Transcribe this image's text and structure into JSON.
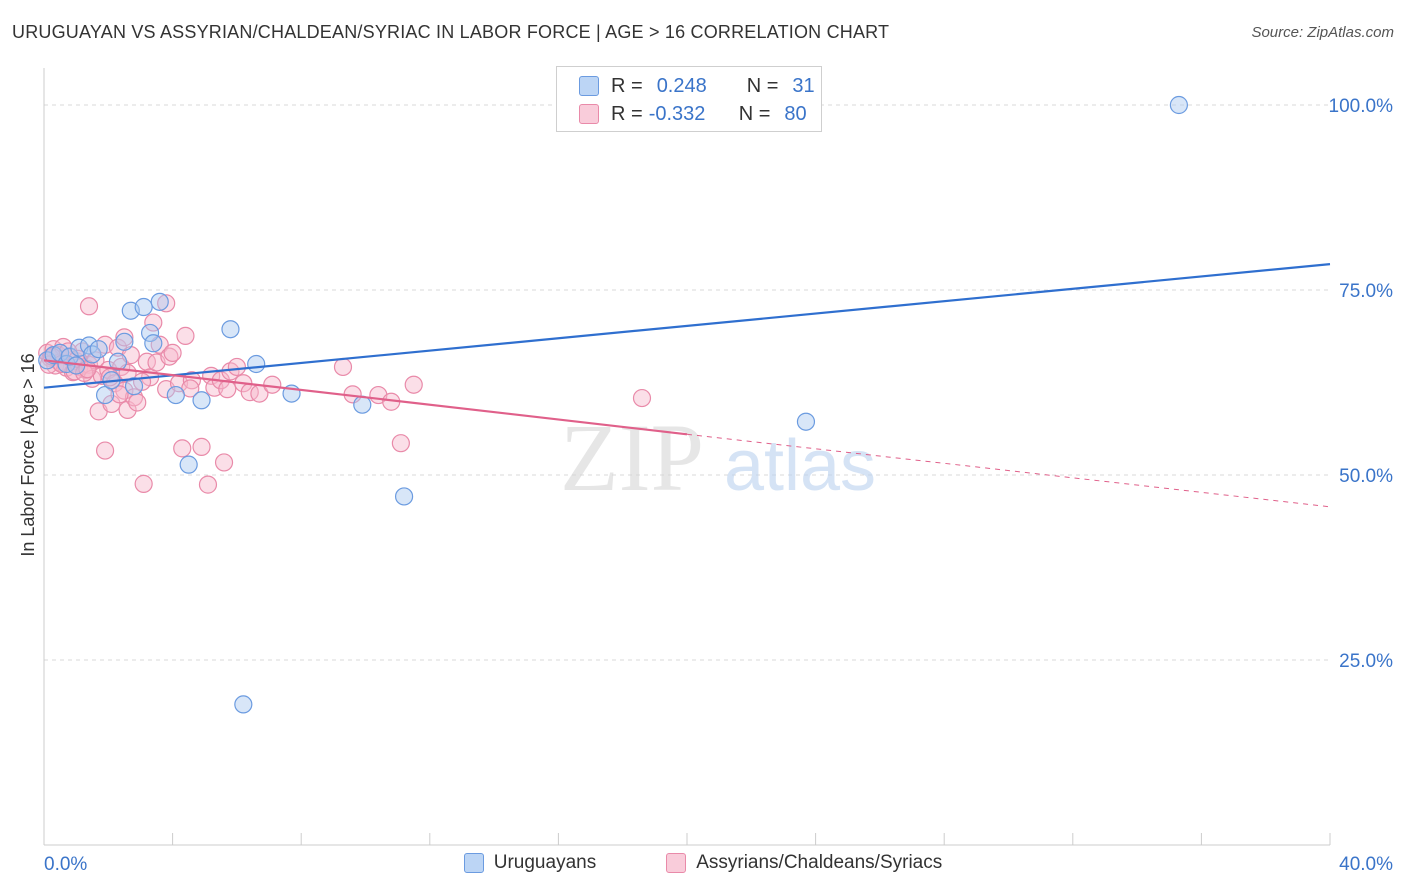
{
  "title": "URUGUAYAN VS ASSYRIAN/CHALDEAN/SYRIAC IN LABOR FORCE | AGE > 16 CORRELATION CHART",
  "source": "Source: ZipAtlas.com",
  "watermark": {
    "zip": "ZIP",
    "atlas": "atlas"
  },
  "legend": {
    "rows": [
      {
        "r_label": "R =",
        "r_value": "0.248",
        "n_label": "N =",
        "n_value": "31"
      },
      {
        "r_label": "R =",
        "r_value": "-0.332",
        "n_label": "N =",
        "n_value": "80"
      }
    ]
  },
  "colors": {
    "blue_fill": "#a9c8f0",
    "blue_stroke": "#6b9be0",
    "blue_line": "#2f6fcf",
    "pink_fill": "#f6b8cc",
    "pink_stroke": "#e98aa9",
    "pink_line": "#e0608a",
    "axis_text": "#3a74c9",
    "grid": "#d9d9d9"
  },
  "chart_data": {
    "type": "scatter",
    "title": "URUGUAYAN VS ASSYRIAN/CHALDEAN/SYRIAC IN LABOR FORCE | AGE > 16 CORRELATION CHART",
    "xlabel": "",
    "ylabel": "In Labor Force | Age > 16",
    "xlim": [
      0,
      40
    ],
    "ylim": [
      0,
      105
    ],
    "x_tick_labels": [
      "0.0%",
      "40.0%"
    ],
    "y_ticks": [
      25,
      50,
      75,
      100
    ],
    "y_tick_labels": [
      "25.0%",
      "50.0%",
      "75.0%",
      "100.0%"
    ],
    "grid": true,
    "legend_position": "top-center",
    "series": [
      {
        "name": "Uruguayans",
        "R": 0.248,
        "N": 31,
        "trend": {
          "x": [
            0,
            40
          ],
          "y": [
            61.8,
            78.5
          ],
          "dashed_from": null
        },
        "points": [
          [
            0.1,
            65.5
          ],
          [
            0.3,
            66.2
          ],
          [
            0.5,
            66.5
          ],
          [
            0.7,
            65.0
          ],
          [
            0.8,
            66.0
          ],
          [
            1.0,
            64.8
          ],
          [
            1.1,
            67.2
          ],
          [
            1.4,
            67.5
          ],
          [
            1.5,
            66.3
          ],
          [
            1.7,
            67.0
          ],
          [
            1.9,
            60.8
          ],
          [
            2.1,
            62.8
          ],
          [
            2.3,
            65.3
          ],
          [
            2.5,
            68.0
          ],
          [
            2.7,
            72.2
          ],
          [
            2.8,
            62.0
          ],
          [
            3.1,
            72.7
          ],
          [
            3.3,
            69.2
          ],
          [
            3.4,
            67.8
          ],
          [
            3.6,
            73.4
          ],
          [
            4.1,
            60.8
          ],
          [
            4.5,
            51.4
          ],
          [
            4.9,
            60.1
          ],
          [
            5.8,
            69.7
          ],
          [
            6.2,
            19.0
          ],
          [
            6.6,
            65.0
          ],
          [
            7.7,
            61.0
          ],
          [
            9.9,
            59.5
          ],
          [
            11.2,
            47.1
          ],
          [
            23.7,
            57.2
          ],
          [
            35.3,
            100.0
          ]
        ]
      },
      {
        "name": "Assyrians/Chaldeans/Syriacs",
        "R": -0.332,
        "N": 80,
        "trend": {
          "x": [
            0,
            20,
            40
          ],
          "y": [
            65.5,
            55.5,
            45.7
          ],
          "dashed_from": 20
        },
        "points": [
          [
            0.1,
            66.5
          ],
          [
            0.2,
            65.8
          ],
          [
            0.3,
            67.0
          ],
          [
            0.35,
            64.8
          ],
          [
            0.45,
            66.2
          ],
          [
            0.5,
            65.2
          ],
          [
            0.6,
            67.3
          ],
          [
            0.7,
            64.5
          ],
          [
            0.8,
            65.9
          ],
          [
            0.9,
            63.9
          ],
          [
            1.0,
            65.4
          ],
          [
            1.1,
            64.6
          ],
          [
            1.2,
            66.7
          ],
          [
            1.3,
            64.2
          ],
          [
            1.4,
            64.9
          ],
          [
            1.5,
            63.0
          ],
          [
            1.4,
            72.8
          ],
          [
            1.6,
            65.5
          ],
          [
            1.7,
            58.6
          ],
          [
            1.8,
            63.4
          ],
          [
            1.9,
            67.6
          ],
          [
            1.9,
            53.3
          ],
          [
            2.0,
            64.2
          ],
          [
            2.1,
            59.6
          ],
          [
            2.2,
            62.4
          ],
          [
            2.3,
            67.2
          ],
          [
            2.4,
            64.6
          ],
          [
            2.5,
            61.4
          ],
          [
            2.5,
            68.6
          ],
          [
            2.6,
            58.8
          ],
          [
            2.6,
            63.8
          ],
          [
            2.7,
            66.2
          ],
          [
            2.8,
            60.5
          ],
          [
            2.9,
            59.8
          ],
          [
            3.1,
            48.8
          ],
          [
            3.2,
            65.3
          ],
          [
            3.3,
            63.2
          ],
          [
            3.4,
            70.6
          ],
          [
            3.5,
            65.2
          ],
          [
            3.6,
            67.6
          ],
          [
            3.8,
            61.6
          ],
          [
            3.8,
            73.2
          ],
          [
            3.9,
            66.0
          ],
          [
            4.0,
            66.5
          ],
          [
            4.2,
            62.4
          ],
          [
            4.3,
            53.6
          ],
          [
            4.4,
            68.8
          ],
          [
            4.6,
            62.8
          ],
          [
            4.9,
            53.8
          ],
          [
            5.1,
            48.7
          ],
          [
            5.2,
            63.4
          ],
          [
            5.3,
            61.8
          ],
          [
            5.5,
            62.8
          ],
          [
            5.6,
            51.7
          ],
          [
            5.7,
            61.6
          ],
          [
            5.8,
            64.0
          ],
          [
            6.0,
            64.6
          ],
          [
            6.2,
            62.4
          ],
          [
            6.4,
            61.2
          ],
          [
            6.7,
            61.0
          ],
          [
            7.1,
            62.2
          ],
          [
            9.3,
            64.6
          ],
          [
            9.6,
            60.9
          ],
          [
            10.4,
            60.8
          ],
          [
            10.8,
            59.9
          ],
          [
            11.1,
            54.3
          ],
          [
            11.5,
            62.2
          ],
          [
            18.6,
            60.4
          ],
          [
            0.15,
            64.9
          ],
          [
            0.25,
            66.0
          ],
          [
            0.55,
            65.0
          ],
          [
            0.75,
            66.7
          ],
          [
            0.95,
            64.0
          ],
          [
            1.05,
            65.7
          ],
          [
            1.25,
            63.8
          ],
          [
            1.35,
            64.3
          ],
          [
            2.05,
            63.2
          ],
          [
            2.35,
            60.9
          ],
          [
            3.05,
            62.6
          ],
          [
            4.55,
            61.7
          ]
        ]
      }
    ]
  },
  "bottom_legend": [
    {
      "label": "Uruguayans"
    },
    {
      "label": "Assyrians/Chaldeans/Syriacs"
    }
  ]
}
